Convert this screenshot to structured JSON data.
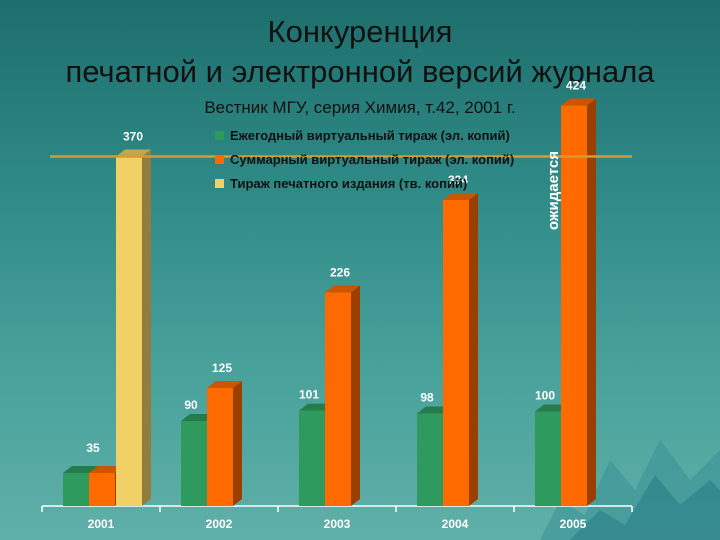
{
  "title_line1": "Конкуренция",
  "title_line2": "печатной и электронной версий журнала",
  "subtitle": "Вестник МГУ, серия Химия, т.42, 2001 г.",
  "colors": {
    "green": "#2f9a5e",
    "orange": "#ff6a00",
    "yellow": "#f1d065",
    "line": "#d89a32"
  },
  "chart_data": {
    "type": "bar",
    "categories": [
      "2001",
      "2002",
      "2003",
      "2004",
      "2005"
    ],
    "series": [
      {
        "name": "Ежегодный виртуальный тираж (эл. копий)",
        "values": [
          35,
          90,
          101,
          98,
          100
        ]
      },
      {
        "name": "Суммарный виртуальный тираж (эл. копий)",
        "values": [
          35,
          125,
          226,
          324,
          424
        ]
      },
      {
        "name": "Тираж печатного издания (тв. копий)",
        "values": [
          370,
          null,
          null,
          null,
          null
        ]
      }
    ],
    "data_labels": {
      "green": [
        "35",
        "90",
        "101",
        "98",
        "100"
      ],
      "orange": [
        "",
        "125",
        "226",
        "324",
        "424"
      ],
      "yellow": [
        "370",
        "",
        "",
        "",
        ""
      ]
    },
    "reference_line": 370,
    "annotation": "ожидается",
    "ylim": [
      0,
      450
    ],
    "legend_position": "top-right",
    "grid": false
  }
}
